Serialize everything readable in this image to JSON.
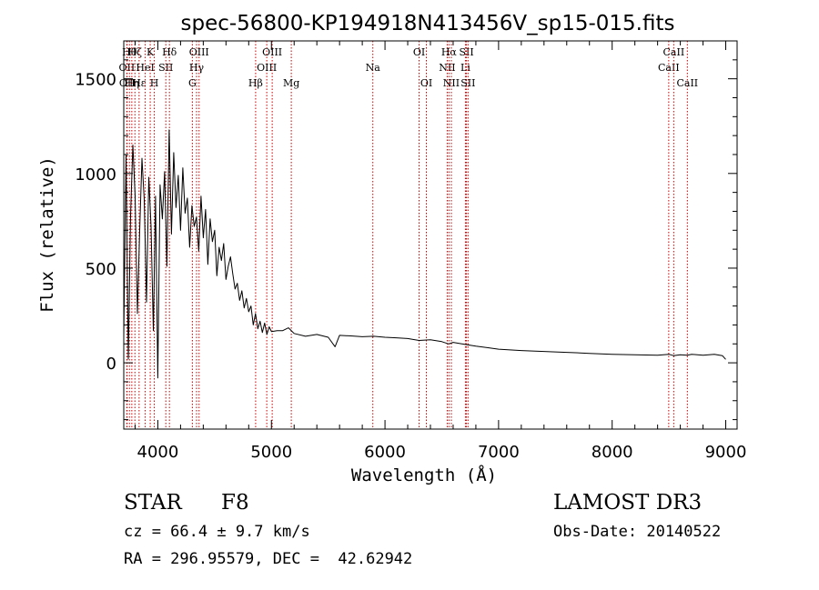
{
  "chart_data": {
    "type": "line",
    "title": "spec-56800-KP194918N413456V_sp15-015.fits",
    "xlabel": "Wavelength (Å)",
    "ylabel": "Flux (relative)",
    "xlim": [
      3700,
      9100
    ],
    "ylim": [
      -350,
      1700
    ],
    "x_ticks": [
      {
        "value": 4000,
        "label": "4000"
      },
      {
        "value": 5000,
        "label": "5000"
      },
      {
        "value": 6000,
        "label": "6000"
      },
      {
        "value": 7000,
        "label": "7000"
      },
      {
        "value": 8000,
        "label": "8000"
      },
      {
        "value": 9000,
        "label": "9000"
      }
    ],
    "y_ticks": [
      {
        "value": 0,
        "label": "0"
      },
      {
        "value": 500,
        "label": "500"
      },
      {
        "value": 1000,
        "label": "1000"
      },
      {
        "value": 1500,
        "label": "1500"
      }
    ],
    "series": [
      {
        "name": "flux",
        "color": "#000000",
        "x": [
          3700,
          3720,
          3740,
          3760,
          3780,
          3800,
          3820,
          3840,
          3860,
          3880,
          3900,
          3920,
          3940,
          3960,
          3980,
          4000,
          4020,
          4040,
          4060,
          4080,
          4100,
          4120,
          4140,
          4160,
          4180,
          4200,
          4220,
          4240,
          4260,
          4280,
          4300,
          4320,
          4340,
          4360,
          4380,
          4400,
          4420,
          4440,
          4460,
          4480,
          4500,
          4520,
          4540,
          4560,
          4580,
          4600,
          4620,
          4640,
          4660,
          4680,
          4700,
          4720,
          4740,
          4760,
          4780,
          4800,
          4820,
          4840,
          4860,
          4880,
          4900,
          4920,
          4940,
          4960,
          4980,
          5000,
          5050,
          5100,
          5150,
          5200,
          5300,
          5400,
          5500,
          5560,
          5600,
          5700,
          5800,
          5900,
          6000,
          6100,
          6200,
          6300,
          6400,
          6500,
          6560,
          6600,
          6700,
          6800,
          6900,
          7000,
          7200,
          7400,
          7600,
          7800,
          8000,
          8200,
          8400,
          8500,
          8540,
          8600,
          8660,
          8700,
          8800,
          8900,
          8970,
          9000
        ],
        "y": [
          140,
          1100,
          20,
          780,
          1150,
          880,
          260,
          700,
          1080,
          860,
          320,
          980,
          720,
          170,
          880,
          -80,
          940,
          760,
          1010,
          510,
          1230,
          680,
          1110,
          820,
          990,
          700,
          1030,
          790,
          870,
          610,
          830,
          720,
          770,
          590,
          880,
          660,
          810,
          520,
          760,
          640,
          700,
          460,
          610,
          540,
          630,
          440,
          510,
          560,
          470,
          390,
          420,
          330,
          380,
          290,
          340,
          270,
          300,
          200,
          260,
          180,
          220,
          160,
          210,
          150,
          190,
          165,
          170,
          170,
          185,
          155,
          140,
          150,
          135,
          85,
          145,
          142,
          138,
          140,
          135,
          132,
          128,
          118,
          122,
          112,
          100,
          108,
          98,
          88,
          80,
          72,
          65,
          60,
          55,
          50,
          45,
          42,
          40,
          45,
          38,
          42,
          40,
          45,
          40,
          45,
          38,
          18
        ]
      }
    ],
    "line_markers": [
      {
        "wavelength": 3727,
        "label": "OII",
        "row": 2
      },
      {
        "wavelength": 3730,
        "label": "OII",
        "row": 3
      },
      {
        "wavelength": 3750,
        "label": "Hθ",
        "row": 1
      },
      {
        "wavelength": 3771,
        "label": "Hη",
        "row": 3
      },
      {
        "wavelength": 3798,
        "label": "Hζ",
        "row": 1
      },
      {
        "wavelength": 3835,
        "label": "Hε",
        "row": 3
      },
      {
        "wavelength": 3889,
        "label": "HeI",
        "row": 2
      },
      {
        "wavelength": 3933,
        "label": "K",
        "row": 1
      },
      {
        "wavelength": 3969,
        "label": "H",
        "row": 3
      },
      {
        "wavelength": 4070,
        "label": "SII",
        "row": 2
      },
      {
        "wavelength": 4102,
        "label": "Hδ",
        "row": 1
      },
      {
        "wavelength": 4304,
        "label": "G",
        "row": 3
      },
      {
        "wavelength": 4341,
        "label": "Hγ",
        "row": 2
      },
      {
        "wavelength": 4363,
        "label": "OIII",
        "row": 1
      },
      {
        "wavelength": 4861,
        "label": "Hβ",
        "row": 3
      },
      {
        "wavelength": 4959,
        "label": "OIII",
        "row": 2
      },
      {
        "wavelength": 5007,
        "label": "OIII",
        "row": 1
      },
      {
        "wavelength": 5175,
        "label": "Mg",
        "row": 3
      },
      {
        "wavelength": 5893,
        "label": "Na",
        "row": 2
      },
      {
        "wavelength": 6300,
        "label": "OI",
        "row": 1
      },
      {
        "wavelength": 6364,
        "label": "OI",
        "row": 3
      },
      {
        "wavelength": 6548,
        "label": "NII",
        "row": 2
      },
      {
        "wavelength": 6563,
        "label": "Hα",
        "row": 1
      },
      {
        "wavelength": 6584,
        "label": "NII",
        "row": 3
      },
      {
        "wavelength": 6708,
        "label": "Li",
        "row": 2
      },
      {
        "wavelength": 6717,
        "label": "SII",
        "row": 1
      },
      {
        "wavelength": 6731,
        "label": "SII",
        "row": 3
      },
      {
        "wavelength": 8498,
        "label": "CaII",
        "row": 2
      },
      {
        "wavelength": 8542,
        "label": "CaII",
        "row": 1
      },
      {
        "wavelength": 8662,
        "label": "CaII",
        "row": 3
      }
    ],
    "marker_color": "#cc0000",
    "axis_color": "#000000"
  },
  "info": {
    "object_class": "STAR",
    "subclass": "F8",
    "survey": "LAMOST DR3",
    "redshift": "cz = 66.4 ± 9.7 km/s",
    "obs_date": "Obs-Date: 20140522",
    "coords": "RA = 296.95579, DEC =  42.62942"
  }
}
